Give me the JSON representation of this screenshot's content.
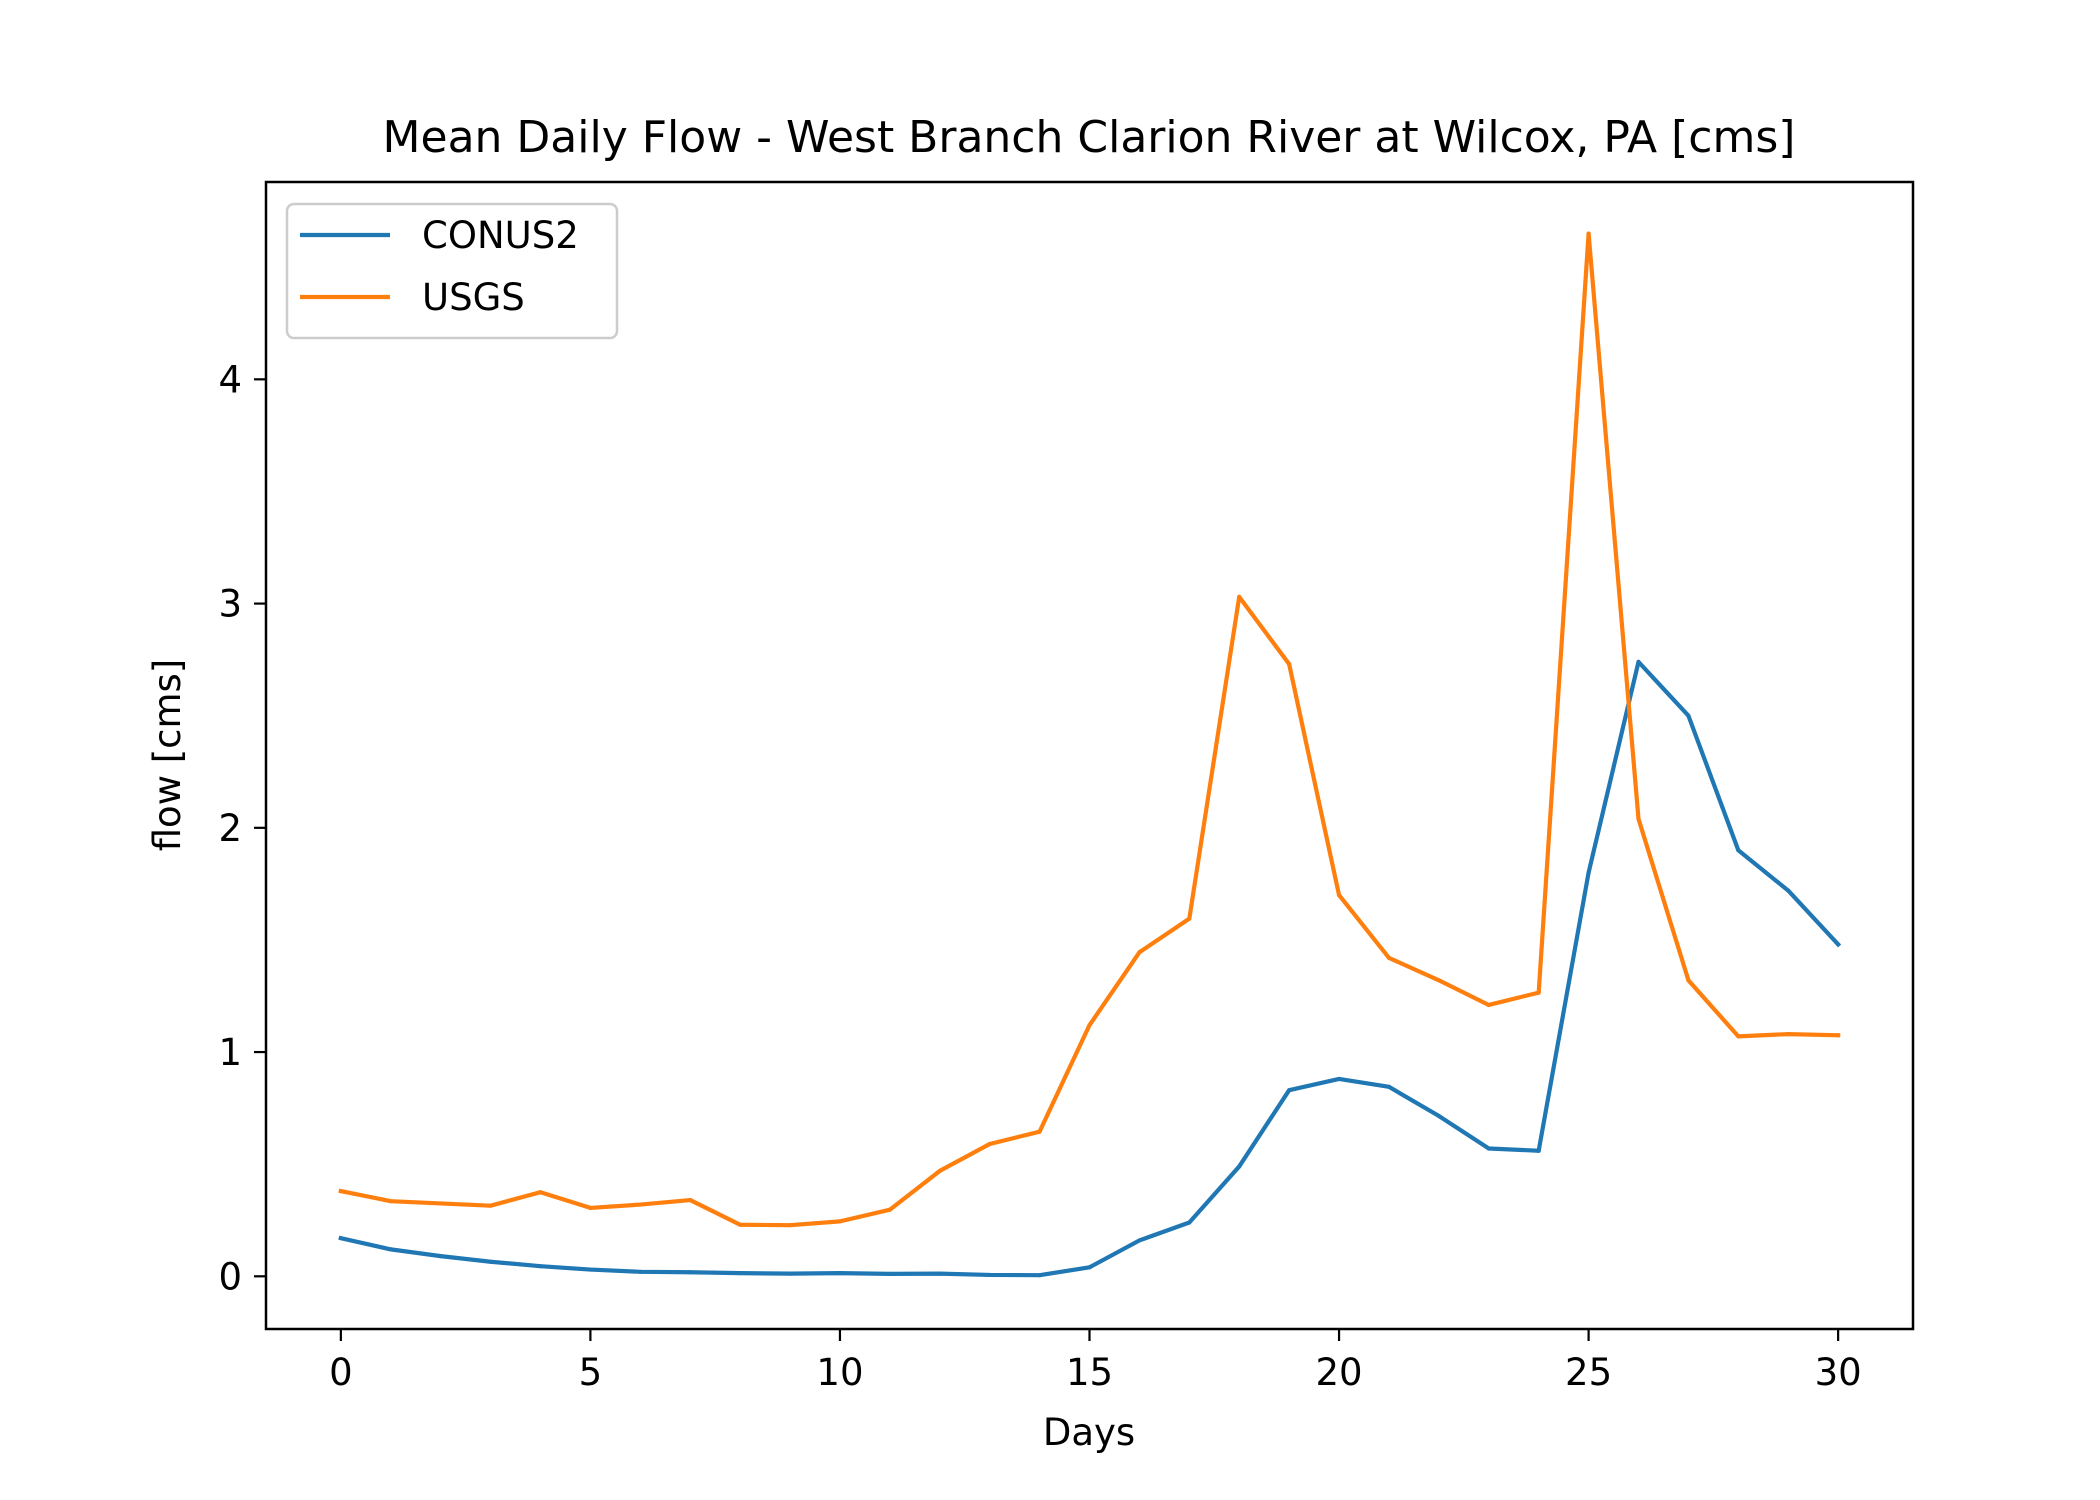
{
  "chart_data": {
    "type": "line",
    "title": "Mean Daily Flow - West Branch Clarion River at Wilcox, PA [cms]",
    "xlabel": "Days",
    "ylabel": "flow [cms]",
    "xlim": [
      -1.5,
      31.5
    ],
    "ylim": [
      -0.235,
      4.88
    ],
    "xticks": [
      0,
      5,
      10,
      15,
      20,
      25,
      30
    ],
    "yticks": [
      0,
      1,
      2,
      3,
      4
    ],
    "grid": false,
    "legend_position": "upper-left",
    "x": [
      0,
      1,
      2,
      3,
      4,
      5,
      6,
      7,
      8,
      9,
      10,
      11,
      12,
      13,
      14,
      15,
      16,
      17,
      18,
      19,
      20,
      21,
      22,
      23,
      24,
      25,
      26,
      27,
      28,
      29,
      30
    ],
    "series": [
      {
        "name": "CONUS2",
        "color": "#1f77b4",
        "values": [
          0.17,
          0.12,
          0.09,
          0.065,
          0.045,
          0.03,
          0.02,
          0.018,
          0.014,
          0.012,
          0.014,
          0.011,
          0.012,
          0.006,
          0.005,
          0.04,
          0.16,
          0.24,
          0.49,
          0.83,
          0.88,
          0.845,
          0.715,
          0.57,
          0.56,
          1.8,
          2.74,
          2.5,
          1.9,
          1.72,
          1.48
        ]
      },
      {
        "name": "USGS",
        "color": "#ff7f0e",
        "values": [
          0.38,
          0.335,
          0.325,
          0.315,
          0.375,
          0.305,
          0.32,
          0.34,
          0.23,
          0.228,
          0.245,
          0.297,
          0.47,
          0.59,
          0.645,
          1.12,
          1.445,
          1.595,
          3.03,
          2.73,
          1.7,
          1.42,
          1.32,
          1.21,
          1.265,
          4.65,
          2.04,
          1.32,
          1.07,
          1.08,
          1.075
        ]
      }
    ]
  }
}
